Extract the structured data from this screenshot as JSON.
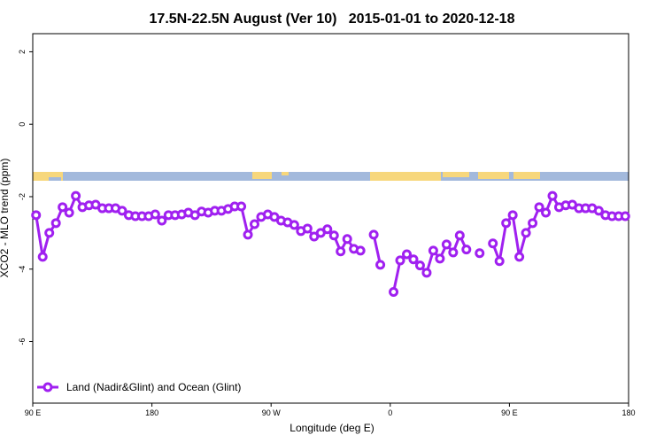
{
  "chart_data": {
    "type": "line",
    "title": "17.5N-22.5N August (Ver 10)   2015-01-01 to 2020-12-18",
    "x_label": "Longitude (deg E)",
    "y_label": "XCO2 - MLO trend (ppm)",
    "xlim": [
      90,
      540
    ],
    "ylim": [
      -7.7,
      2.5
    ],
    "xticks": [
      {
        "value": 90,
        "label": "90 E"
      },
      180,
      {
        "value": 270,
        "label": "90 W"
      },
      {
        "value": 360,
        "label": "0"
      },
      {
        "value": 450,
        "label": "90 E"
      },
      {
        "value": 540,
        "label": "180"
      }
    ],
    "yticks": [
      2,
      0,
      -2,
      -4,
      -6
    ],
    "legend_position": "bottom-left",
    "x": [
      92.5,
      97.5,
      102.5,
      107.5,
      112.5,
      117.5,
      122.5,
      127.5,
      132.5,
      137.5,
      142.5,
      147.5,
      152.5,
      157.5,
      162.5,
      167.5,
      172.5,
      177.5,
      182.5,
      187.5,
      192.5,
      197.5,
      202.5,
      207.5,
      212.5,
      217.5,
      222.5,
      227.5,
      232.5,
      237.5,
      242.5,
      247.5,
      252.5,
      257.5,
      262.5,
      267.5,
      272.5,
      277.5,
      282.5,
      287.5,
      292.5,
      297.5,
      302.5,
      307.5,
      312.5,
      317.5,
      322.5,
      327.5,
      332.5,
      337.5,
      342.5,
      347.5,
      352.5,
      357.5,
      362.5,
      367.5,
      372.5,
      377.5,
      382.5,
      387.5,
      392.5,
      397.5,
      402.5,
      407.5,
      412.5,
      417.5,
      422.5,
      427.5,
      432.5,
      437.5,
      442.5,
      447.5,
      452.5,
      457.5,
      462.5,
      467.5,
      472.5,
      477.5,
      482.5,
      487.5,
      492.5,
      497.5,
      502.5,
      507.5,
      512.5,
      517.5,
      522.5,
      527.5,
      532.5,
      537.5
    ],
    "series": [
      {
        "name": "Land (Nadir&Glint) and Ocean (Glint)",
        "color": "#a020f0",
        "values": [
          -2.51,
          -3.66,
          -3.0,
          -2.73,
          -2.29,
          -2.44,
          -1.98,
          -2.29,
          -2.24,
          -2.22,
          -2.32,
          -2.32,
          -2.32,
          -2.39,
          -2.51,
          -2.54,
          -2.54,
          -2.54,
          -2.49,
          -2.66,
          -2.51,
          -2.51,
          -2.49,
          -2.44,
          -2.51,
          -2.41,
          -2.44,
          -2.39,
          -2.39,
          -2.34,
          -2.27,
          -2.27,
          -3.05,
          -2.76,
          -2.56,
          -2.49,
          -2.56,
          -2.66,
          -2.71,
          -2.78,
          -2.95,
          -2.88,
          -3.1,
          -3.0,
          -2.9,
          -3.07,
          -3.51,
          -3.17,
          -3.44,
          -3.49,
          null,
          -3.05,
          -3.88,
          null,
          -4.63,
          -3.76,
          -3.59,
          -3.73,
          -3.9,
          -4.1,
          -3.49,
          -3.71,
          -3.32,
          -3.54,
          -3.07,
          -3.46,
          null,
          -3.56,
          null,
          -3.29,
          -3.78,
          -2.73,
          -2.51,
          -3.66,
          -3.0,
          -2.73,
          -2.29,
          -2.44,
          -1.98,
          -2.29,
          -2.24,
          -2.22,
          -2.32,
          -2.32,
          -2.32,
          -2.39,
          -2.51,
          -2.54,
          -2.54,
          -2.54
        ]
      }
    ]
  }
}
